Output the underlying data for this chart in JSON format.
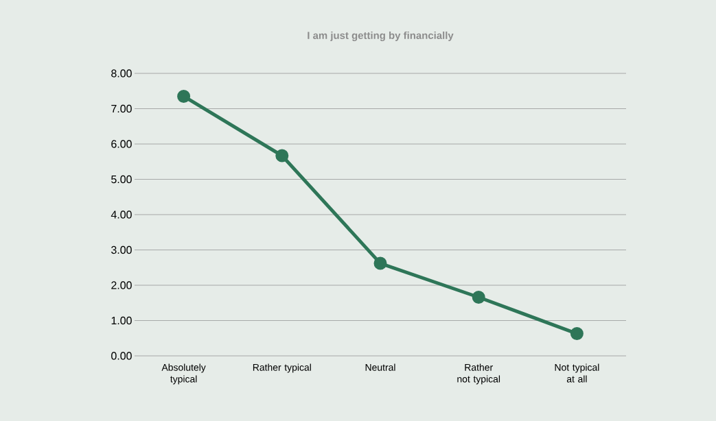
{
  "chart_data": {
    "type": "line",
    "title": "I am just getting by financially",
    "categories": [
      "Absolutely typical",
      "Rather typical",
      "Neutral",
      "Rather not typical",
      "Not typical at all"
    ],
    "values": [
      7.35,
      5.67,
      2.62,
      1.66,
      0.63
    ],
    "color": "#2e7658",
    "ylim": [
      0,
      8
    ],
    "yticks": [
      {
        "value": 0,
        "label": "0.00"
      },
      {
        "value": 1,
        "label": "1.00"
      },
      {
        "value": 2,
        "label": "2.00"
      },
      {
        "value": 3,
        "label": "3.00"
      },
      {
        "value": 4,
        "label": "4.00"
      },
      {
        "value": 5,
        "label": "5.00"
      },
      {
        "value": 6,
        "label": "6.00"
      },
      {
        "value": 7,
        "label": "7.00"
      },
      {
        "value": 8,
        "label": "8.00"
      }
    ],
    "grid": "y",
    "marker": "circle",
    "line_style": "solid"
  }
}
